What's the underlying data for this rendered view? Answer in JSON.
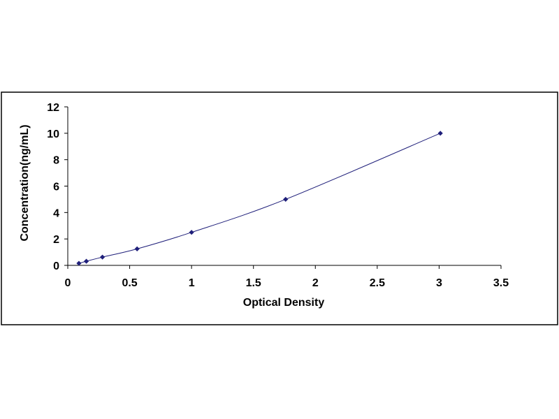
{
  "chart_data": {
    "type": "scatter",
    "title": "",
    "xlabel": "Optical Density",
    "ylabel": "Concentration(ng/mL)",
    "xlim": [
      0,
      3.5
    ],
    "ylim": [
      0,
      12
    ],
    "x_ticks": [
      "0",
      "0.5",
      "1",
      "1.5",
      "2",
      "2.5",
      "3",
      "3.5"
    ],
    "y_ticks": [
      "0",
      "2",
      "4",
      "6",
      "8",
      "10",
      "12"
    ],
    "grid": false,
    "legend": "none",
    "trendline": "smooth curve through points",
    "series": [
      {
        "x": [
          0.09,
          0.15,
          0.28,
          0.56,
          1.0,
          1.76,
          3.01
        ],
        "y": [
          0.156,
          0.312,
          0.625,
          1.25,
          2.5,
          5.0,
          10.0
        ]
      }
    ],
    "colors": {
      "marker": "#1f1f7a",
      "line": "#1f1f7a",
      "axis": "#000000",
      "frame": "#000000"
    }
  }
}
